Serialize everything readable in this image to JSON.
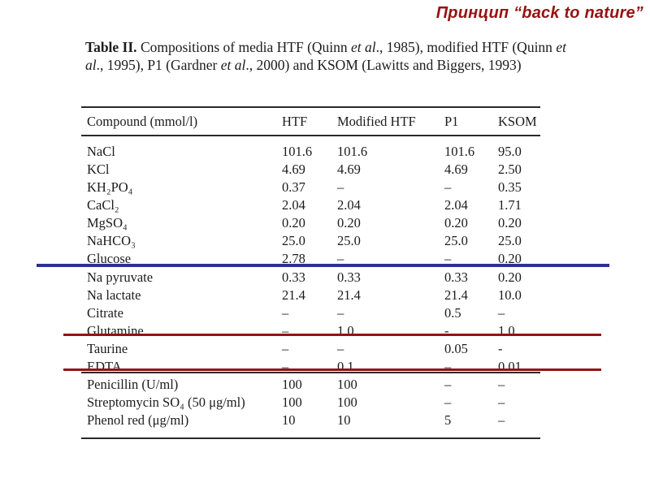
{
  "title": {
    "text": "Принцип “back to nature”",
    "color": "#971212"
  },
  "paper_table": {
    "caption": {
      "segments": [
        {
          "text": "Table II.",
          "bold": true
        },
        {
          "text": " Compositions of media HTF (Quinn "
        },
        {
          "text": "et al",
          "italic": true
        },
        {
          "text": "., 1985), modified HTF (Quinn "
        },
        {
          "text": "et al",
          "italic": true
        },
        {
          "text": "., 1995), P1 (Gardner "
        },
        {
          "text": "et al",
          "italic": true
        },
        {
          "text": "., 2000) and KSOM (Lawitts and Biggers, 1993)"
        }
      ]
    },
    "columns": [
      "Compound (mmol/l)",
      "HTF",
      "Modified HTF",
      "P1",
      "KSOM"
    ],
    "sections": [
      {
        "rows": [
          {
            "compound": "NaCl",
            "values": [
              "101.6",
              "101.6",
              "101.6",
              "95.0"
            ]
          },
          {
            "compound": "KCl",
            "values": [
              "4.69",
              "4.69",
              "4.69",
              "2.50"
            ]
          },
          {
            "compound": "KH₂PO₄",
            "values": [
              "0.37",
              "–",
              "–",
              "0.35"
            ]
          },
          {
            "compound": "CaCl₂",
            "values": [
              "2.04",
              "2.04",
              "2.04",
              "1.71"
            ]
          },
          {
            "compound": "MgSO₄",
            "values": [
              "0.20",
              "0.20",
              "0.20",
              "0.20"
            ]
          },
          {
            "compound": "NaHCO₃",
            "values": [
              "25.0",
              "25.0",
              "25.0",
              "25.0"
            ]
          },
          {
            "compound": "Glucose",
            "values": [
              "2.78",
              "–",
              "–",
              "0.20"
            ]
          }
        ]
      },
      {
        "rows": [
          {
            "compound": "Na pyruvate",
            "values": [
              "0.33",
              "0.33",
              "0.33",
              "0.20"
            ]
          },
          {
            "compound": "Na lactate",
            "values": [
              "21.4",
              "21.4",
              "21.4",
              "10.0"
            ]
          },
          {
            "compound": "Citrate",
            "values": [
              "–",
              "–",
              "0.5",
              "–"
            ]
          },
          {
            "compound": "Glutamine",
            "values": [
              "–",
              "1.0",
              "-",
              "1.0"
            ]
          },
          {
            "compound": "Taurine",
            "values": [
              "–",
              "–",
              "0.05",
              "-"
            ]
          },
          {
            "compound": "EDTA",
            "values": [
              "–",
              "0.1",
              "–",
              "0.01"
            ]
          }
        ]
      },
      {
        "rows": [
          {
            "compound": "Penicillin (U/ml)",
            "values": [
              "100",
              "100",
              "–",
              "–"
            ]
          },
          {
            "compound": "Streptomycin SO₄ (50 μg/ml)",
            "values": [
              "100",
              "100",
              "–",
              "–"
            ]
          },
          {
            "compound": "Phenol red (μg/ml)",
            "values": [
              "10",
              "10",
              "5",
              "–"
            ]
          }
        ]
      }
    ]
  },
  "annotations": {
    "blue_underline": {
      "color": "#2e3192",
      "after_row": "Glucose"
    },
    "red_underline_1": {
      "color": "#8f1511",
      "after_row": "Glutamine"
    },
    "red_underline_2": {
      "color": "#8f1511",
      "after_row": "EDTA"
    }
  }
}
